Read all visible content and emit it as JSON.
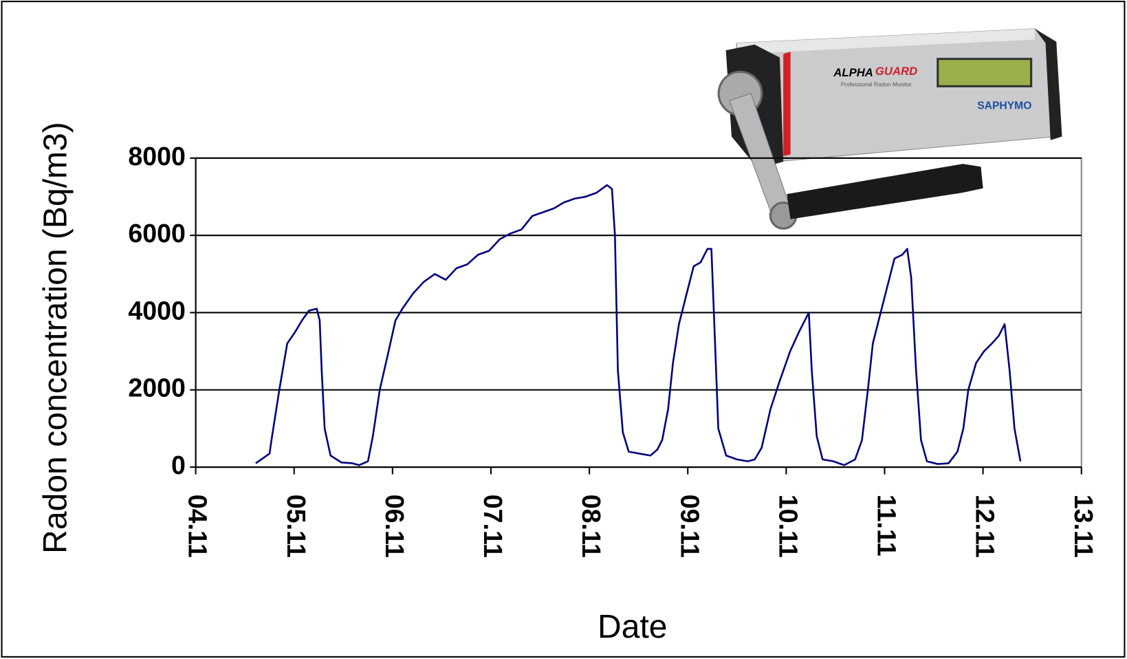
{
  "chart_data": {
    "type": "line",
    "xlabel": "Date",
    "ylabel": "Radon concentration (Bq/m3)",
    "x": [
      4.61,
      4.75,
      4.77,
      4.85,
      4.93,
      5.01,
      5.08,
      5.15,
      5.23,
      5.26,
      5.28,
      5.31,
      5.37,
      5.48,
      5.59,
      5.66,
      5.75,
      5.8,
      5.87,
      5.96,
      6.03,
      6.1,
      6.21,
      6.32,
      6.43,
      6.54,
      6.65,
      6.76,
      6.87,
      6.98,
      7.09,
      7.2,
      7.31,
      7.42,
      7.53,
      7.64,
      7.74,
      7.85,
      7.96,
      8.07,
      8.18,
      8.23,
      8.26,
      8.29,
      8.34,
      8.4,
      8.51,
      8.62,
      8.69,
      8.74,
      8.8,
      8.85,
      8.91,
      8.99,
      9.06,
      9.13,
      9.2,
      9.24,
      9.28,
      9.31,
      9.39,
      9.5,
      9.61,
      9.68,
      9.75,
      9.84,
      9.93,
      10.04,
      10.13,
      10.23,
      10.26,
      10.31,
      10.37,
      10.48,
      10.59,
      10.7,
      10.77,
      10.83,
      10.88,
      10.96,
      11.04,
      11.1,
      11.18,
      11.23,
      11.27,
      11.32,
      11.37,
      11.43,
      11.54,
      11.65,
      11.74,
      11.8,
      11.85,
      11.93,
      12.01,
      12.09,
      12.16,
      12.22,
      12.27,
      12.32,
      12.38
    ],
    "values": [
      100,
      350,
      700,
      2000,
      3200,
      3500,
      3800,
      4050,
      4100,
      3800,
      2500,
      1000,
      300,
      120,
      100,
      50,
      150,
      800,
      2000,
      3000,
      3800,
      4100,
      4500,
      4800,
      5000,
      4850,
      5150,
      5250,
      5500,
      5600,
      5900,
      6050,
      6150,
      6500,
      6600,
      6700,
      6850,
      6950,
      7000,
      7100,
      7300,
      7200,
      6000,
      2500,
      900,
      400,
      350,
      300,
      450,
      700,
      1500,
      2700,
      3700,
      4500,
      5200,
      5300,
      5650,
      5650,
      3000,
      1000,
      300,
      200,
      150,
      200,
      500,
      1500,
      2200,
      3000,
      3500,
      4000,
      2500,
      800,
      200,
      150,
      50,
      200,
      700,
      2000,
      3200,
      4000,
      4800,
      5400,
      5500,
      5650,
      4900,
      2500,
      700,
      150,
      80,
      100,
      400,
      1000,
      2000,
      2700,
      3000,
      3200,
      3400,
      3700,
      2500,
      1000,
      150
    ],
    "color": "#000080",
    "xlim": [
      4,
      13
    ],
    "xticks": [
      {
        "value": 4,
        "label": "04.11"
      },
      {
        "value": 5,
        "label": "05.11"
      },
      {
        "value": 6,
        "label": "06.11"
      },
      {
        "value": 7,
        "label": "07.11"
      },
      {
        "value": 8,
        "label": "08.11"
      },
      {
        "value": 9,
        "label": "09.11"
      },
      {
        "value": 10,
        "label": "10.11"
      },
      {
        "value": 11,
        "label": "11.11"
      },
      {
        "value": 12,
        "label": "12.11"
      },
      {
        "value": 13,
        "label": "13.11"
      }
    ],
    "ylim": [
      0,
      8000
    ],
    "yticks": [
      0,
      2000,
      4000,
      6000,
      8000
    ],
    "grid": true
  },
  "device": {
    "brand_a": "ALPHA",
    "brand_b": "GUARD",
    "subtitle": "Professional Radon Monitor",
    "maker": "SAPHYMO"
  }
}
